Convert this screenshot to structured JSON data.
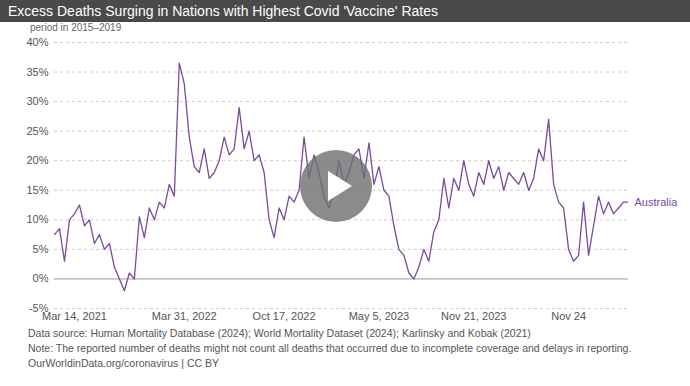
{
  "chart_data": {
    "type": "line",
    "title": "Excess Deaths Surging in Nations with Highest Covid 'Vaccine' Rates",
    "subtitle": "period in 2015–2019",
    "categories": [
      null,
      null,
      null,
      null,
      "Mar 14, 2021",
      null,
      null,
      null,
      null,
      null,
      null,
      null,
      null,
      null,
      null,
      null,
      null,
      null,
      null,
      null,
      null,
      null,
      null,
      null,
      null,
      null,
      "Mar 31, 2022",
      null,
      null,
      null,
      null,
      null,
      null,
      null,
      null,
      null,
      null,
      null,
      null,
      null,
      null,
      null,
      null,
      null,
      null,
      null,
      "Oct 17, 2022",
      null,
      null,
      null,
      null,
      null,
      null,
      null,
      null,
      null,
      null,
      null,
      null,
      null,
      null,
      null,
      null,
      null,
      null,
      "May 5, 2023",
      null,
      null,
      null,
      null,
      null,
      null,
      null,
      null,
      null,
      null,
      null,
      null,
      null,
      null,
      null,
      null,
      null,
      null,
      "Nov 21, 2023",
      null,
      null,
      null,
      null,
      null,
      null,
      null,
      null,
      null,
      null,
      null,
      null,
      null,
      null,
      null,
      null,
      null,
      null,
      "Nov 24",
      null,
      null,
      null,
      null,
      null,
      null,
      null,
      null,
      null,
      null,
      null,
      null
    ],
    "series": [
      {
        "name": "Australia",
        "color": "#7a4a9c",
        "values": [
          7.5,
          8.5,
          3,
          10,
          11,
          12.5,
          9,
          10,
          6,
          7.5,
          5,
          6,
          2,
          0,
          -2,
          1,
          0,
          10.5,
          7,
          12,
          10,
          13,
          12,
          16,
          14,
          36.5,
          33,
          24,
          19,
          18,
          22,
          17,
          18,
          20,
          24,
          21,
          22,
          29,
          22,
          25,
          20,
          21,
          18,
          10,
          7,
          12,
          10,
          14,
          13,
          15,
          24,
          17,
          21,
          18,
          14,
          12,
          15,
          20,
          16,
          18,
          21,
          22,
          17,
          23,
          16,
          19,
          15,
          14,
          9,
          5,
          4,
          1,
          0,
          2,
          5,
          3,
          8,
          10,
          17,
          12,
          17,
          15,
          20,
          16,
          14,
          18,
          16,
          20,
          17,
          19,
          15,
          18,
          17,
          16,
          18,
          15,
          17,
          22,
          20,
          27,
          16,
          13,
          12,
          5,
          3,
          4,
          13,
          4,
          9,
          14,
          11,
          13,
          11,
          12,
          13,
          13
        ]
      }
    ],
    "ylim": [
      -5,
      40
    ],
    "yticks": [
      {
        "value": -5,
        "label": "-5%"
      },
      {
        "value": 0,
        "label": "0%"
      },
      {
        "value": 5,
        "label": "5%"
      },
      {
        "value": 10,
        "label": "10%"
      },
      {
        "value": 15,
        "label": "15%"
      },
      {
        "value": 20,
        "label": "20%"
      },
      {
        "value": 25,
        "label": "25%"
      },
      {
        "value": 30,
        "label": "30%"
      },
      {
        "value": 35,
        "label": "35%"
      },
      {
        "value": 40,
        "label": "40%"
      }
    ],
    "grid": true,
    "source": "Data source: Human Mortality Database (2024); World Mortality Dataset (2024); Karlinsky and Kobak (2021)",
    "note": "Note: The reported number of deaths might not count all deaths that occurred due to incomplete coverage and delays in reporting.",
    "credit": "OurWorldinData.org/coronavirus | CC BY"
  }
}
